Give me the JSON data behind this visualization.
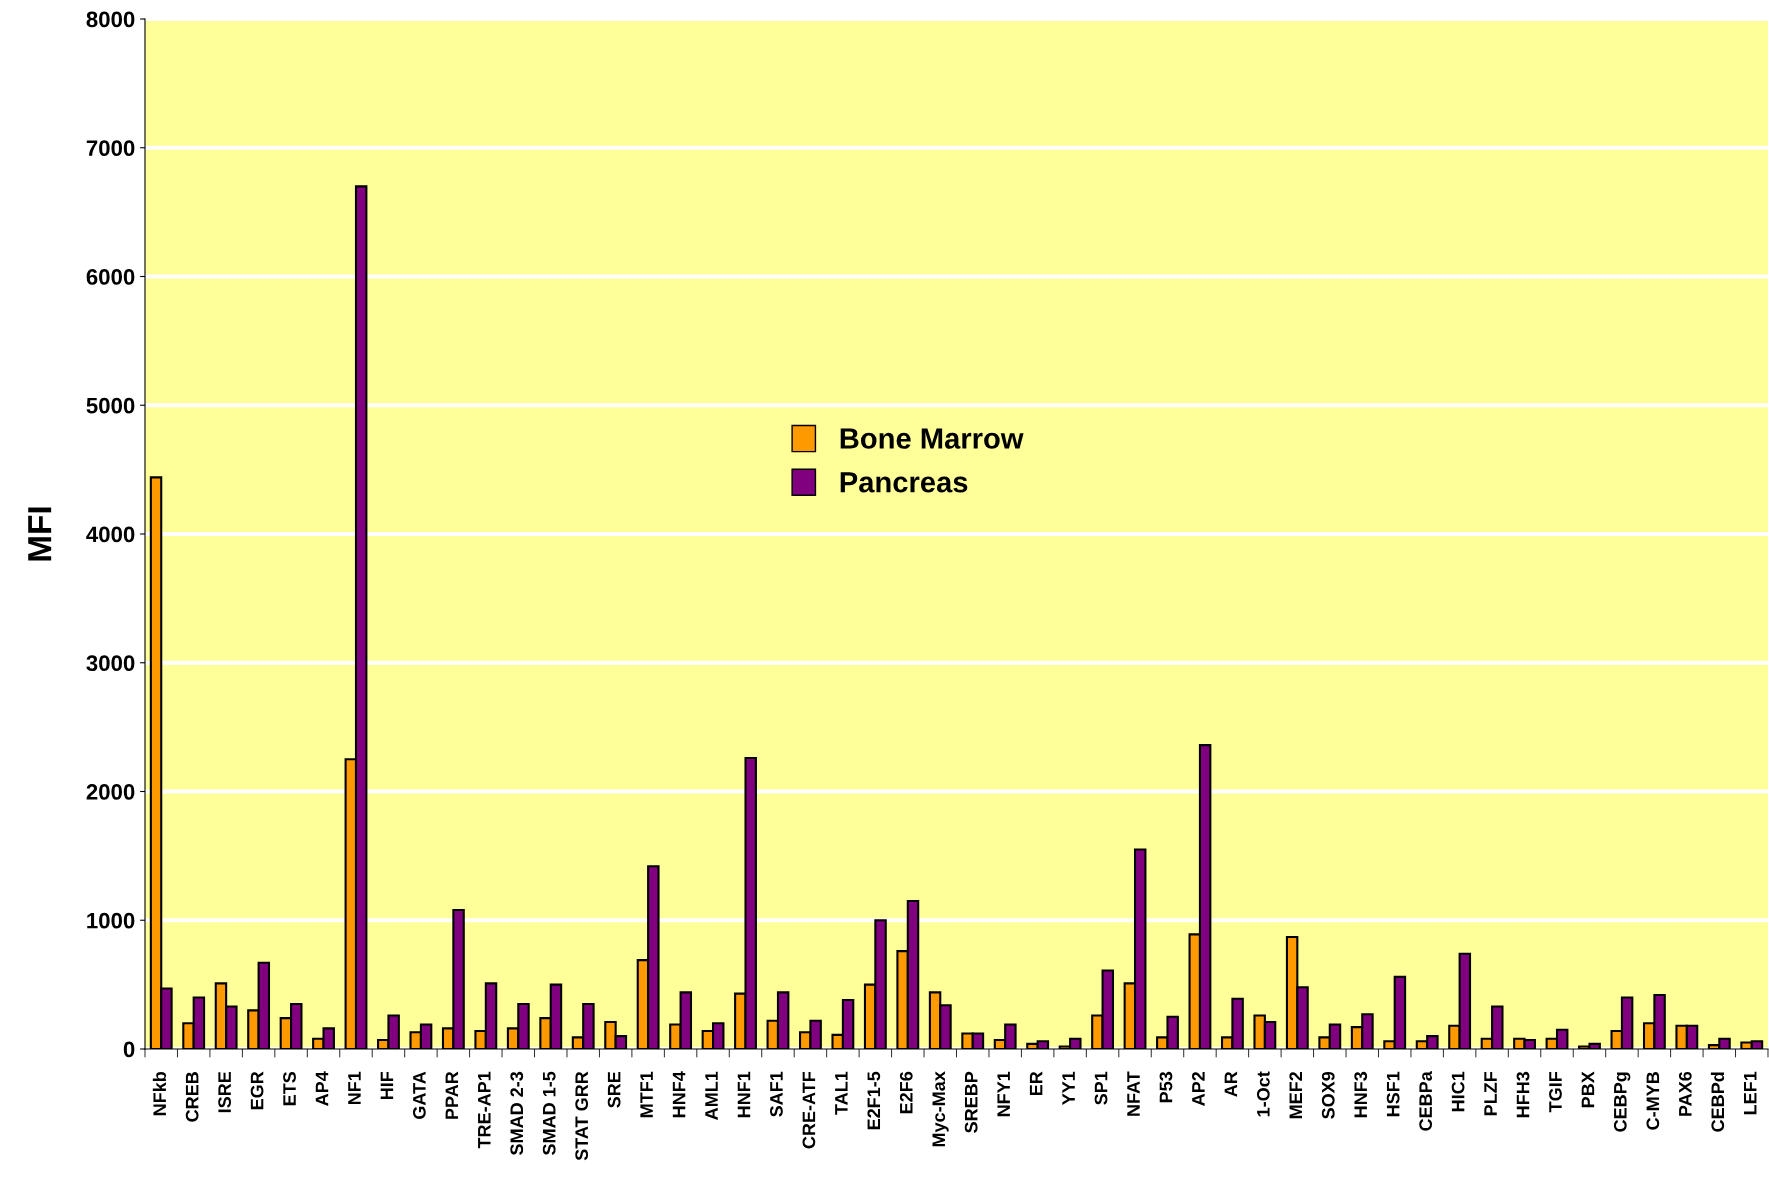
{
  "chart_data": {
    "type": "bar",
    "ylabel": "MFI",
    "categories": [
      "NFkb",
      "CREB",
      "ISRE",
      "EGR",
      "ETS",
      "AP4",
      "NF1",
      "HIF",
      "GATA",
      "PPAR",
      "TRE-AP1",
      "SMAD 2-3",
      "SMAD 1-5",
      "STAT GRR",
      "SRE",
      "MTF1",
      "HNF4",
      "AML1",
      "HNF1",
      "SAF1",
      "CRE-ATF",
      "TAL1",
      "E2F1-5",
      "E2F6",
      "Myc-Max",
      "SREBP",
      "NFY1",
      "ER",
      "YY1",
      "SP1",
      "NFAT",
      "P53",
      "AP2",
      "AR",
      "1-Oct",
      "MEF2",
      "SOX9",
      "HNF3",
      "HSF1",
      "CEBPa",
      "HIC1",
      "PLZF",
      "HFH3",
      "TGIF",
      "PBX",
      "CEBPg",
      "C-MYB",
      "PAX6",
      "CEBPd",
      "LEF1"
    ],
    "series": [
      {
        "name": "Bone Marrow",
        "color": "#ff9900",
        "values": [
          4440,
          200,
          510,
          300,
          240,
          80,
          2250,
          70,
          130,
          160,
          140,
          160,
          240,
          90,
          210,
          690,
          190,
          140,
          430,
          220,
          130,
          110,
          500,
          760,
          440,
          120,
          70,
          40,
          20,
          260,
          510,
          90,
          890,
          90,
          260,
          870,
          90,
          170,
          60,
          60,
          180,
          80,
          80,
          80,
          20,
          140,
          200,
          180,
          30,
          50
        ]
      },
      {
        "name": "Pancreas",
        "color": "#800080",
        "values": [
          470,
          400,
          330,
          670,
          350,
          160,
          6700,
          260,
          190,
          1080,
          510,
          350,
          500,
          350,
          100,
          1420,
          440,
          200,
          2260,
          440,
          220,
          380,
          1000,
          1150,
          340,
          120,
          190,
          60,
          80,
          610,
          1550,
          250,
          2360,
          390,
          210,
          480,
          190,
          270,
          560,
          100,
          740,
          330,
          70,
          150,
          40,
          400,
          420,
          180,
          80,
          60
        ]
      }
    ],
    "ylim": [
      0,
      8000
    ],
    "yticks": [
      0,
      1000,
      2000,
      3000,
      4000,
      5000,
      6000,
      7000,
      8000
    ],
    "grid": "y",
    "legend": "center"
  }
}
